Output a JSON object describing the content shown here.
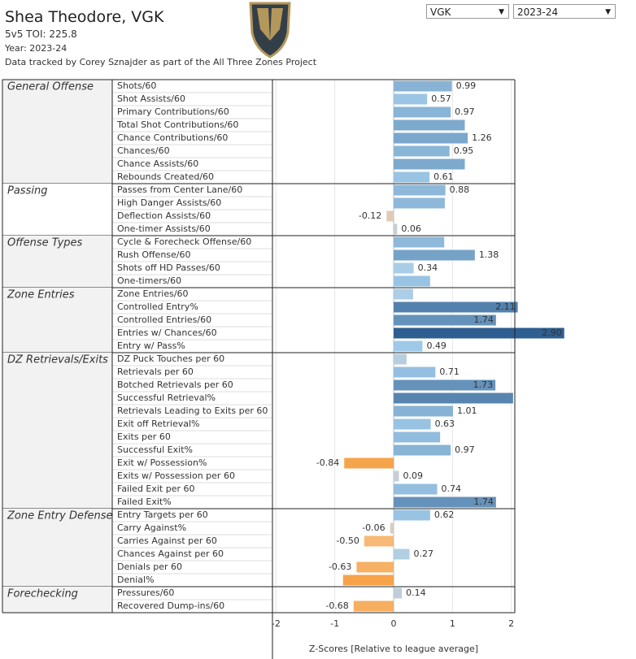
{
  "header": {
    "title": "Shea Theodore, VGK",
    "toi_label": "5v5 TOI:",
    "toi": 225.8,
    "year": "Year: 2023-24",
    "source": "Data tracked by Corey Sznajder as part of the All Three Zones Project"
  },
  "filters": {
    "team": "VGK",
    "season": "2023-24"
  },
  "chart_data": {
    "type": "bar",
    "orientation": "horizontal",
    "xlabel": "Z-Scores [Relative to league average]",
    "xlim": [
      -2.06,
      2.06
    ],
    "xticks": [
      -2,
      -1,
      0,
      1,
      2
    ],
    "grid": true,
    "color_stops": [
      [
        -1,
        "#f59a38"
      ],
      [
        -0.3,
        "#f8c58e"
      ],
      [
        0,
        "#cfcfcf"
      ],
      [
        0.4,
        "#a3cdeb"
      ],
      [
        3,
        "#2a5a8c"
      ]
    ],
    "groups": [
      {
        "name": "General Offense",
        "categories": [
          "Shots/60",
          "Shot Assists/60",
          "Primary Contributions/60",
          "Total Shot Contributions/60",
          "Chance Contributions/60",
          "Chances/60",
          "Chance Assists/60",
          "Rebounds Created/60"
        ],
        "values": [
          0.99,
          0.57,
          0.97,
          1.21,
          1.26,
          0.95,
          1.21,
          0.61
        ],
        "value_labels": [
          "0.99",
          "0.57",
          "0.97",
          null,
          "1.26",
          "0.95",
          null,
          "0.61"
        ]
      },
      {
        "name": "Passing",
        "categories": [
          "Passes from Center Lane/60",
          "High Danger Assists/60",
          "Deflection Assists/60",
          "One-timer Assists/60"
        ],
        "values": [
          0.88,
          0.87,
          -0.12,
          0.06
        ],
        "value_labels": [
          "0.88",
          null,
          "-0.12",
          "0.06"
        ]
      },
      {
        "name": "Offense Types",
        "categories": [
          "Cycle & Forecheck Offense/60",
          "Rush Offense/60",
          "Shots off HD Passes/60",
          "One-timers/60"
        ],
        "values": [
          0.86,
          1.38,
          0.34,
          0.62
        ],
        "value_labels": [
          null,
          "1.38",
          "0.34",
          null
        ]
      },
      {
        "name": "Zone Entries",
        "categories": [
          "Zone Entries/60",
          "Controlled Entry%",
          "Controlled Entries/60",
          "Entries w/ Chances/60",
          "Entry w/ Pass%"
        ],
        "values": [
          0.33,
          2.11,
          1.74,
          2.9,
          0.49
        ],
        "value_labels": [
          null,
          "2.11",
          "1.74",
          "2.90",
          "0.49"
        ]
      },
      {
        "name": "DZ Retrievals/Exits",
        "categories": [
          "DZ Puck Touches per 60",
          "Retrievals per 60",
          "Botched Retrievals per 60",
          "Successful Retrieval%",
          "Retrievals Leading to Exits per 60",
          "Exit off Retrieval%",
          "Exits per 60",
          "Successful Exit%",
          "Exit w/ Possession%",
          "Exits w/ Possession per 60",
          "Failed Exit per 60",
          "Failed Exit%"
        ],
        "values": [
          0.22,
          0.71,
          1.73,
          2.03,
          1.01,
          0.63,
          0.79,
          0.97,
          -0.84,
          0.09,
          0.74,
          1.74
        ],
        "value_labels": [
          null,
          "0.71",
          "1.73",
          null,
          "1.01",
          "0.63",
          null,
          "0.97",
          "-0.84",
          "0.09",
          "0.74",
          "1.74"
        ]
      },
      {
        "name": "Zone Entry Defense",
        "categories": [
          "Entry Targets per 60",
          "Carry Against%",
          "Carries Against per 60",
          "Chances Against per 60",
          "Denials per 60",
          "Denial%"
        ],
        "values": [
          0.62,
          -0.06,
          -0.5,
          0.27,
          -0.63,
          -0.86
        ],
        "value_labels": [
          "0.62",
          "-0.06",
          "-0.50",
          "0.27",
          "-0.63",
          null
        ]
      },
      {
        "name": "Forechecking",
        "categories": [
          "Pressures/60",
          "Recovered Dump-ins/60"
        ],
        "values": [
          0.14,
          -0.68
        ],
        "value_labels": [
          "0.14",
          "-0.68"
        ]
      }
    ]
  }
}
